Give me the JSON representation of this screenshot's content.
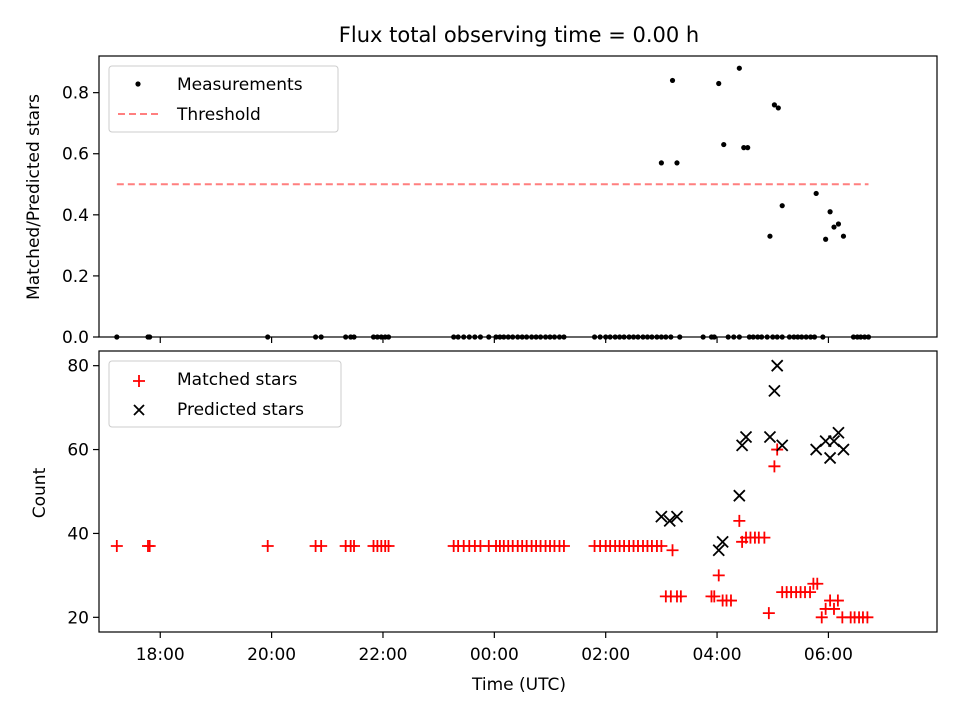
{
  "title": "Flux total observing time = 0.00 h",
  "chart_data": [
    {
      "type": "scatter",
      "ylabel": "Matched/Predicted stars",
      "ylim": [
        0,
        0.92
      ],
      "yticks": [
        "0.0",
        "0.2",
        "0.4",
        "0.6",
        "0.8"
      ],
      "xlim_hours": [
        -7.1,
        7.95
      ],
      "grid": false,
      "legend_position": "top-left",
      "series": [
        {
          "name": "Measurements",
          "marker": "dot",
          "color": "#000000",
          "x": [
            -6.78,
            -6.22,
            -6.19,
            -4.07,
            -3.21,
            -3.11,
            -2.67,
            -2.58,
            -2.52,
            -2.17,
            -2.1,
            -2.03,
            -1.96,
            -1.9,
            -0.73,
            -0.65,
            -0.55,
            -0.45,
            -0.35,
            -0.25,
            -0.1,
            0.03,
            0.1,
            0.17,
            0.25,
            0.33,
            0.42,
            0.5,
            0.58,
            0.67,
            0.75,
            0.83,
            0.92,
            1.0,
            1.08,
            1.17,
            1.25,
            1.8,
            1.9,
            2.0,
            2.08,
            2.17,
            2.25,
            2.33,
            2.42,
            2.5,
            2.58,
            2.67,
            2.75,
            2.83,
            2.92,
            3.0,
            3.08,
            3.17,
            3.33,
            3.75,
            3.9,
            3.95,
            4.2,
            4.3,
            4.4,
            4.58,
            4.65,
            4.73,
            4.8,
            4.9,
            5.0,
            5.08,
            5.17,
            5.3,
            5.38,
            5.45,
            5.52,
            5.6,
            5.68,
            5.75,
            5.9,
            6.45,
            6.52,
            6.58,
            6.65,
            6.72,
            3.0,
            3.2,
            3.28,
            4.03,
            4.12,
            4.4,
            4.48,
            4.55,
            4.95,
            5.03,
            5.1,
            5.17,
            5.78,
            5.95,
            6.03,
            6.1,
            6.18,
            6.27
          ],
          "y": [
            0,
            0,
            0,
            0,
            0,
            0,
            0,
            0,
            0,
            0,
            0,
            0,
            0,
            0,
            0,
            0,
            0,
            0,
            0,
            0,
            0,
            0,
            0,
            0,
            0,
            0,
            0,
            0,
            0,
            0,
            0,
            0,
            0,
            0,
            0,
            0,
            0,
            0,
            0,
            0,
            0,
            0,
            0,
            0,
            0,
            0,
            0,
            0,
            0,
            0,
            0,
            0,
            0,
            0,
            0,
            0,
            0,
            0,
            0,
            0,
            0,
            0,
            0,
            0,
            0,
            0,
            0,
            0,
            0,
            0,
            0,
            0,
            0,
            0,
            0,
            0,
            0,
            0,
            0,
            0,
            0,
            0,
            0.57,
            0.84,
            0.57,
            0.83,
            0.63,
            0.88,
            0.62,
            0.62,
            0.33,
            0.76,
            0.75,
            0.43,
            0.47,
            0.32,
            0.41,
            0.36,
            0.37,
            0.33
          ]
        },
        {
          "name": "Threshold",
          "style": "dashed",
          "color": "#ff7f7f",
          "x": [
            -6.78,
            6.72
          ],
          "y": [
            0.5,
            0.5
          ]
        }
      ]
    },
    {
      "type": "scatter",
      "ylabel": "Count",
      "xlabel": "Time (UTC)",
      "ylim": [
        16.5,
        83.5
      ],
      "yticks": [
        "20",
        "40",
        "60",
        "80"
      ],
      "xticks": [
        {
          "hours": -6,
          "label": "18:00"
        },
        {
          "hours": -4,
          "label": "20:00"
        },
        {
          "hours": -2,
          "label": "22:00"
        },
        {
          "hours": 0,
          "label": "00:00"
        },
        {
          "hours": 2,
          "label": "02:00"
        },
        {
          "hours": 4,
          "label": "04:00"
        },
        {
          "hours": 6,
          "label": "06:00"
        }
      ],
      "xlim_hours": [
        -7.1,
        7.95
      ],
      "grid": false,
      "legend_position": "top-left",
      "series": [
        {
          "name": "Matched stars",
          "marker": "plus",
          "color": "#ff0000",
          "x": [
            -6.78,
            -6.22,
            -6.19,
            -4.07,
            -3.21,
            -3.11,
            -2.67,
            -2.58,
            -2.52,
            -2.17,
            -2.1,
            -2.03,
            -1.96,
            -1.9,
            -0.73,
            -0.65,
            -0.55,
            -0.45,
            -0.35,
            -0.25,
            -0.1,
            0.03,
            0.1,
            0.17,
            0.25,
            0.33,
            0.42,
            0.5,
            0.58,
            0.67,
            0.75,
            0.83,
            0.92,
            1.0,
            1.08,
            1.17,
            1.25,
            1.8,
            1.9,
            2.0,
            2.08,
            2.17,
            2.25,
            2.33,
            2.42,
            2.5,
            2.58,
            2.67,
            2.75,
            2.83,
            2.92,
            3.0,
            3.08,
            3.17,
            3.2,
            3.28,
            3.35,
            3.9,
            3.95,
            4.03,
            4.1,
            4.17,
            4.25,
            4.4,
            4.45,
            4.52,
            4.6,
            4.68,
            4.75,
            4.85,
            4.93,
            5.03,
            5.08,
            5.17,
            5.25,
            5.33,
            5.42,
            5.5,
            5.58,
            5.67,
            5.73,
            5.8,
            5.88,
            5.95,
            6.03,
            6.1,
            6.17,
            6.25,
            6.4,
            6.47,
            6.55,
            6.62,
            6.7
          ],
          "y": [
            37,
            37,
            37,
            37,
            37,
            37,
            37,
            37,
            37,
            37,
            37,
            37,
            37,
            37,
            37,
            37,
            37,
            37,
            37,
            37,
            37,
            37,
            37,
            37,
            37,
            37,
            37,
            37,
            37,
            37,
            37,
            37,
            37,
            37,
            37,
            37,
            37,
            37,
            37,
            37,
            37,
            37,
            37,
            37,
            37,
            37,
            37,
            37,
            37,
            37,
            37,
            37,
            25,
            25,
            36,
            25,
            25,
            25,
            25,
            30,
            24,
            24,
            24,
            43,
            38,
            39,
            39,
            39,
            39,
            39,
            21,
            56,
            60,
            26,
            26,
            26,
            26,
            26,
            26,
            26,
            28,
            28,
            20,
            22,
            24,
            22,
            24,
            20,
            20,
            20,
            20,
            20,
            20
          ]
        },
        {
          "name": "Predicted stars",
          "marker": "x",
          "color": "#000000",
          "x": [
            3.0,
            3.15,
            3.28,
            4.03,
            4.1,
            4.4,
            4.45,
            4.52,
            4.95,
            5.03,
            5.08,
            5.17,
            5.78,
            5.95,
            6.03,
            6.1,
            6.18,
            6.27
          ],
          "y": [
            44,
            43,
            44,
            36,
            38,
            49,
            61,
            63,
            63,
            74,
            80,
            61,
            60,
            62,
            58,
            62,
            64,
            60
          ]
        }
      ]
    }
  ]
}
